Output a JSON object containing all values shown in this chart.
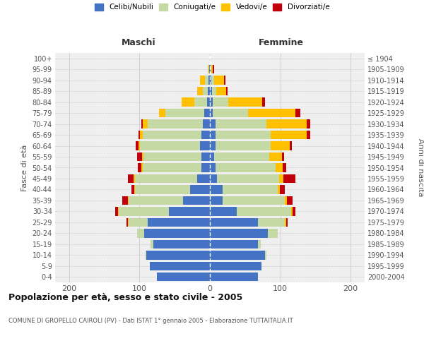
{
  "age_groups": [
    "0-4",
    "5-9",
    "10-14",
    "15-19",
    "20-24",
    "25-29",
    "30-34",
    "35-39",
    "40-44",
    "45-49",
    "50-54",
    "55-59",
    "60-64",
    "65-69",
    "70-74",
    "75-79",
    "80-84",
    "85-89",
    "90-94",
    "95-99",
    "100+"
  ],
  "birth_years": [
    "2000-2004",
    "1995-1999",
    "1990-1994",
    "1985-1989",
    "1980-1984",
    "1975-1979",
    "1970-1974",
    "1965-1969",
    "1960-1964",
    "1955-1959",
    "1950-1954",
    "1945-1949",
    "1940-1944",
    "1935-1939",
    "1930-1934",
    "1925-1929",
    "1920-1924",
    "1915-1919",
    "1910-1914",
    "1905-1909",
    "≤ 1904"
  ],
  "maschi_celibi": [
    75,
    85,
    90,
    80,
    93,
    88,
    58,
    38,
    28,
    18,
    12,
    12,
    14,
    12,
    10,
    8,
    4,
    3,
    2,
    1,
    0
  ],
  "maschi_coniugati": [
    0,
    0,
    1,
    4,
    10,
    28,
    72,
    78,
    78,
    88,
    83,
    82,
    85,
    83,
    78,
    55,
    18,
    7,
    5,
    1,
    0
  ],
  "maschi_vedovi": [
    0,
    0,
    0,
    0,
    0,
    1,
    1,
    1,
    1,
    2,
    2,
    2,
    2,
    4,
    7,
    9,
    18,
    8,
    7,
    1,
    0
  ],
  "maschi_divorziati": [
    0,
    0,
    0,
    0,
    0,
    2,
    4,
    8,
    5,
    9,
    5,
    7,
    4,
    2,
    2,
    0,
    0,
    0,
    0,
    0,
    0
  ],
  "femmine_nubili": [
    68,
    73,
    78,
    68,
    82,
    68,
    38,
    18,
    18,
    10,
    8,
    6,
    8,
    8,
    8,
    4,
    4,
    3,
    2,
    1,
    0
  ],
  "femmine_coniugate": [
    0,
    0,
    2,
    4,
    14,
    38,
    78,
    88,
    78,
    88,
    85,
    78,
    78,
    78,
    72,
    50,
    22,
    6,
    4,
    1,
    0
  ],
  "femmine_vedove": [
    0,
    0,
    0,
    0,
    0,
    2,
    2,
    3,
    3,
    6,
    10,
    18,
    28,
    52,
    58,
    68,
    48,
    14,
    14,
    2,
    0
  ],
  "femmine_divorziate": [
    0,
    0,
    0,
    0,
    0,
    2,
    4,
    9,
    7,
    18,
    5,
    3,
    3,
    5,
    5,
    7,
    4,
    2,
    2,
    2,
    0
  ],
  "color_celibi": "#4472c4",
  "color_coniugati": "#c5d9a4",
  "color_vedovi": "#ffc000",
  "color_divorziati": "#c0000b",
  "title": "Popolazione per età, sesso e stato civile - 2005",
  "subtitle": "COMUNE DI GROPELLO CAIROLI (PV) - Dati ISTAT 1° gennaio 2005 - Elaborazione TUTTAITALIA.IT",
  "header_maschi": "Maschi",
  "header_femmine": "Femmine",
  "ylabel_left": "Fasce di età",
  "ylabel_right": "Anni di nascita",
  "xlim": 220,
  "bg_color": "#efefef",
  "grid_color": "#cccccc",
  "legend_labels": [
    "Celibi/Nubili",
    "Coniugati/e",
    "Vedovi/e",
    "Divorziati/e"
  ]
}
